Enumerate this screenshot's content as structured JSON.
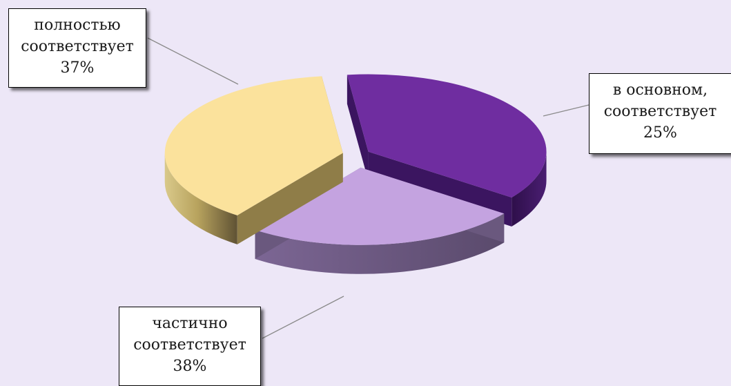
{
  "chart_data": {
    "type": "pie",
    "title": "",
    "slices": [
      {
        "label": "полностью соответствует",
        "value": 37,
        "percent_label": "37%",
        "color": "#6f2da0"
      },
      {
        "label": "в основном, соответствует",
        "value": 25,
        "percent_label": "25%",
        "color": "#c4a3e0"
      },
      {
        "label": "частично соответствует",
        "value": 38,
        "percent_label": "38%",
        "color": "#fbe29c"
      }
    ]
  },
  "callouts": {
    "full": {
      "line1": "полностью",
      "line2": "соответствует",
      "line3": "37%"
    },
    "main": {
      "line1": "в основном,",
      "line2": "соответствует",
      "line3": "25%"
    },
    "part": {
      "line1": "частично",
      "line2": "соответствует",
      "line3": "38%"
    }
  }
}
